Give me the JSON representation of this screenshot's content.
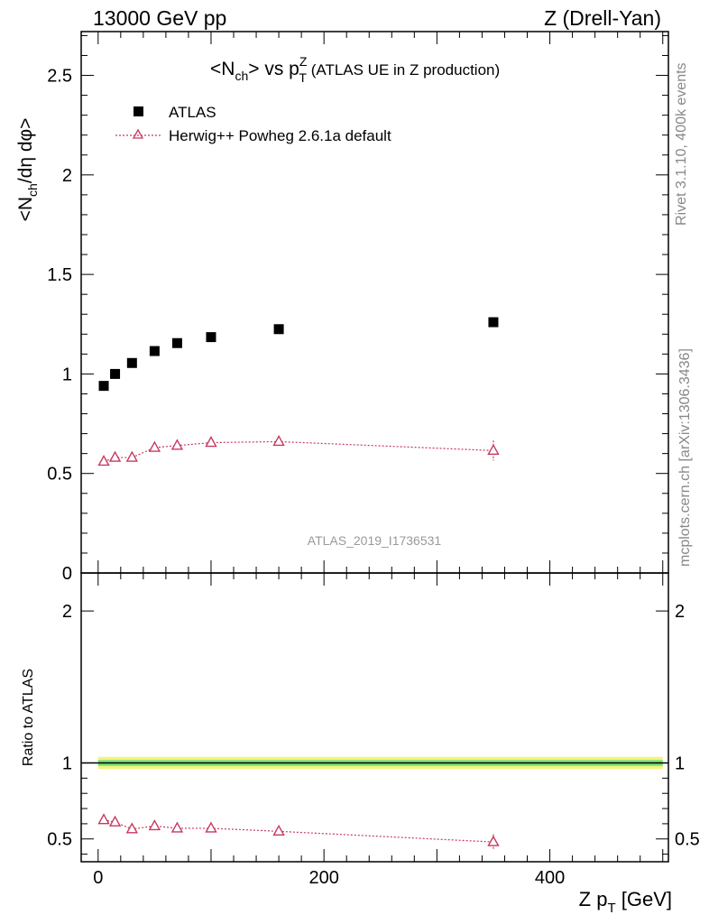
{
  "header": {
    "left": "13000 GeV pp",
    "right": "Z (Drell-Yan)"
  },
  "side_labels": {
    "rivet": "Rivet 3.1.10,  400k events",
    "mcplots": "mcplots.cern.ch [arXiv:1306.3436]"
  },
  "chart_data": [
    {
      "type": "scatter",
      "panel": "main",
      "title_parts": {
        "a": "<N",
        "a_sub": "ch",
        "b": "> vs p",
        "b_sup": "Z",
        "b_sub": "T",
        "c": " (ATLAS UE in Z production)"
      },
      "ylabel_parts": {
        "a": "<N",
        "a_sub": "ch",
        "b": "/dη dφ>"
      },
      "xlim": [
        -15,
        505
      ],
      "ylim": [
        0,
        2.72
      ],
      "yticks": [
        {
          "v": 0.5,
          "label": "0.5"
        },
        {
          "v": 1,
          "label": "1"
        },
        {
          "v": 1.5,
          "label": "1.5"
        },
        {
          "v": 2,
          "label": "2"
        },
        {
          "v": 2.5,
          "label": "2.5"
        }
      ],
      "zero_label": "0",
      "watermark": "ATLAS_2019_I1736531",
      "legend_position": "top-left",
      "series": [
        {
          "name": "ATLAS",
          "marker": "square",
          "color": "#000000",
          "x": [
            5,
            15,
            30,
            50,
            70,
            100,
            160,
            350
          ],
          "y": [
            0.94,
            1.0,
            1.055,
            1.115,
            1.155,
            1.185,
            1.225,
            1.26
          ]
        },
        {
          "name": "Herwig++ Powheg 2.6.1a default",
          "marker": "open-triangle",
          "line": "dotted",
          "color": "#c8385f",
          "x": [
            5,
            15,
            30,
            50,
            70,
            100,
            160,
            350
          ],
          "y": [
            0.56,
            0.58,
            0.58,
            0.63,
            0.64,
            0.655,
            0.66,
            0.615
          ],
          "err": [
            0.01,
            0.01,
            0.01,
            0.01,
            0.01,
            0.012,
            0.015,
            0.05
          ]
        }
      ]
    },
    {
      "type": "scatter",
      "panel": "ratio",
      "ylabel": "Ratio to ATLAS",
      "xlabel_parts": {
        "a": "Z p",
        "a_sub": "T",
        "b": " [GeV]"
      },
      "xlim": [
        -15,
        505
      ],
      "ylim": [
        0.35,
        2.25
      ],
      "xticks": [
        {
          "v": 0,
          "label": "0"
        },
        {
          "v": 200,
          "label": "200"
        },
        {
          "v": 400,
          "label": "400"
        }
      ],
      "yticks": [
        {
          "v": 0.5,
          "label": "0.5"
        },
        {
          "v": 1,
          "label": "1"
        },
        {
          "v": 2,
          "label": "2"
        }
      ],
      "bands": {
        "inner_color": "#7fe07f",
        "outer_color": "#f4f47a",
        "inner_half": 0.02,
        "outer_half": 0.04
      },
      "series": [
        {
          "name": "Herwig++ Powheg 2.6.1a default",
          "marker": "open-triangle",
          "line": "dotted",
          "color": "#c8385f",
          "x": [
            5,
            15,
            30,
            50,
            70,
            100,
            160,
            350
          ],
          "y": [
            0.625,
            0.61,
            0.565,
            0.585,
            0.57,
            0.57,
            0.55,
            0.48
          ],
          "err": [
            0.01,
            0.01,
            0.012,
            0.012,
            0.012,
            0.015,
            0.025,
            0.05
          ]
        }
      ]
    }
  ]
}
